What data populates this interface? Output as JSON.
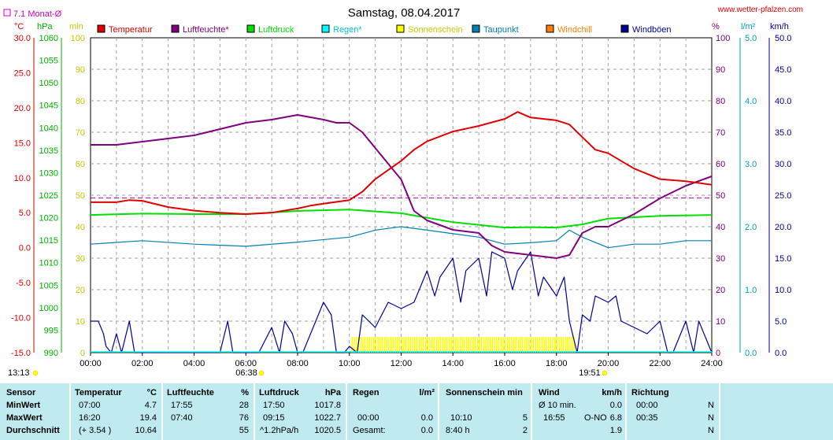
{
  "header": {
    "title": "Samstag, 08.04.2017",
    "site": "www.wetter-pfalzen.com",
    "monthly_avg_label": "7.1 Monat-Ø",
    "unit_temp": "°C",
    "unit_press": "hPa",
    "unit_min": "min",
    "unit_pct": "%",
    "unit_rain": "l/m²",
    "unit_wind": "km/h"
  },
  "legend": [
    {
      "label": "Temperatur",
      "color": "#e00000"
    },
    {
      "label": "Luftfeuchte*",
      "color": "#800080"
    },
    {
      "label": "Luftdruck",
      "color": "#00e000"
    },
    {
      "label": "Regen*",
      "color": "#00ffff"
    },
    {
      "label": "Sonnenschein",
      "color": "#ffff00"
    },
    {
      "label": "Taupunkt",
      "color": "#0080b0"
    },
    {
      "label": "Windchill",
      "color": "#ff8000"
    },
    {
      "label": "Windböen",
      "color": "#000090"
    }
  ],
  "sun": {
    "rise_label": "06:38",
    "set_label": "19:51",
    "day_label": "13:13"
  },
  "chart_data": {
    "type": "line",
    "title": "Samstag, 08.04.2017",
    "x_ticks": [
      "00:00",
      "02:00",
      "04:00",
      "06:00",
      "08:00",
      "10:00",
      "12:00",
      "14:00",
      "16:00",
      "18:00",
      "20:00",
      "22:00",
      "24:00"
    ],
    "axes": {
      "temp_c": {
        "min": -15,
        "max": 30,
        "ticks": [
          "30.0",
          "25.0",
          "20.0",
          "15.0",
          "10.0",
          "5.0",
          "0.0",
          "-5.0",
          "-10.0",
          "-15.0"
        ]
      },
      "pressure_hpa": {
        "min": 990,
        "max": 1060,
        "ticks": [
          "1060",
          "1055",
          "1050",
          "1045",
          "1040",
          "1035",
          "1030",
          "1025",
          "1020",
          "1015",
          "1010",
          "1005",
          "1000",
          "995",
          "990"
        ]
      },
      "sun_min": {
        "min": 0,
        "max": 100,
        "ticks": [
          "100",
          "90",
          "80",
          "70",
          "60",
          "50",
          "40",
          "30",
          "20",
          "10",
          "0"
        ]
      },
      "humidity_pct": {
        "min": 0,
        "max": 100,
        "ticks": [
          "100",
          "90",
          "80",
          "70",
          "60",
          "50",
          "40",
          "30",
          "20",
          "10",
          "0"
        ]
      },
      "rain_lm2": {
        "min": 0,
        "max": 5,
        "ticks": [
          "5.0",
          "4.0",
          "3.0",
          "2.0",
          "1.0",
          "0.0"
        ]
      },
      "wind_kmh": {
        "min": 0,
        "max": 50,
        "ticks": [
          "50.0",
          "45.0",
          "40.0",
          "35.0",
          "30.0",
          "25.0",
          "20.0",
          "15.0",
          "10.0",
          "5.0",
          "0.0"
        ]
      }
    },
    "monthly_avg_temp": 7.1,
    "series": [
      {
        "name": "Temperatur",
        "color": "#e00000",
        "axis": "temp_c",
        "x": [
          0,
          1,
          1.5,
          2,
          3,
          4,
          5,
          6,
          7,
          8,
          8.5,
          9,
          10,
          10.5,
          11,
          12,
          12.5,
          13,
          14,
          15,
          16,
          16.5,
          17,
          18,
          18.5,
          19,
          19.5,
          20,
          21,
          22,
          23,
          24
        ],
        "y": [
          6.5,
          6.5,
          6.8,
          6.7,
          5.8,
          5.3,
          5.0,
          4.8,
          5.0,
          5.6,
          6.0,
          6.3,
          6.8,
          8.0,
          9.8,
          12.4,
          14.0,
          15.2,
          16.6,
          17.4,
          18.4,
          19.4,
          18.6,
          18.2,
          17.6,
          15.8,
          14.0,
          13.5,
          11.3,
          9.8,
          9.5,
          9.0
        ]
      },
      {
        "name": "Luftfeuchte*",
        "color": "#800080",
        "axis": "humidity_pct",
        "x": [
          0,
          1,
          2,
          3,
          4,
          5,
          6,
          7,
          8,
          9,
          9.5,
          10,
          10.5,
          11,
          12,
          12.5,
          13,
          14,
          15,
          15.5,
          16,
          17,
          18,
          18.5,
          19,
          19.5,
          20,
          21,
          22,
          23,
          24
        ],
        "y": [
          66,
          66,
          67,
          68,
          69,
          71,
          73,
          74,
          75.5,
          74,
          73,
          73,
          70,
          65,
          55,
          45,
          42,
          39,
          38,
          34,
          32,
          31,
          30,
          31,
          38,
          40,
          40,
          44,
          49,
          53,
          56
        ]
      },
      {
        "name": "Luftdruck",
        "color": "#00e000",
        "axis": "pressure_hpa",
        "x": [
          0,
          2,
          4,
          6,
          8,
          10,
          12,
          13,
          14,
          16,
          17,
          18,
          19,
          20,
          22,
          24
        ],
        "y": [
          1020.6,
          1020.9,
          1020.8,
          1020.8,
          1021.5,
          1021.8,
          1021.0,
          1020.0,
          1019.0,
          1017.8,
          1017.9,
          1017.8,
          1018.5,
          1019.8,
          1020.4,
          1020.6
        ]
      },
      {
        "name": "Taupunkt",
        "color": "#0080b0",
        "axis": "temp_c",
        "x": [
          0,
          2,
          4,
          6,
          8,
          10,
          11,
          12,
          13,
          14,
          15,
          16,
          17,
          18,
          18.5,
          19,
          20,
          21,
          22,
          23,
          24
        ],
        "y": [
          0.5,
          1.0,
          0.5,
          0.2,
          0.8,
          1.5,
          2.5,
          3.0,
          2.5,
          2.0,
          1.5,
          0.5,
          0.7,
          1.0,
          2.5,
          1.5,
          0.0,
          0.5,
          0.5,
          1.0,
          1.0
        ]
      },
      {
        "name": "Windböen",
        "color": "#000090",
        "axis": "wind_kmh",
        "x": [
          0,
          0.3,
          0.5,
          0.6,
          0.8,
          1.0,
          1.2,
          1.5,
          1.7,
          5.0,
          5.3,
          5.5,
          5.8,
          6.5,
          7.0,
          7.3,
          7.5,
          7.8,
          8.0,
          8.2,
          9.0,
          9.3,
          9.5,
          9.8,
          10.0,
          10.3,
          10.5,
          11.0,
          11.5,
          12.0,
          12.5,
          13.0,
          13.3,
          13.5,
          14.0,
          14.3,
          14.5,
          15.0,
          15.3,
          15.5,
          16.0,
          16.3,
          16.5,
          17.0,
          17.3,
          17.5,
          18.0,
          18.3,
          18.5,
          18.8,
          19.0,
          19.3,
          19.5,
          20.0,
          20.3,
          20.5,
          21.0,
          21.5,
          22.0,
          22.3,
          22.5,
          23.0,
          23.3,
          23.5,
          24.0
        ],
        "y": [
          5,
          5,
          3,
          1,
          0,
          3,
          0,
          5,
          0,
          0,
          5,
          0,
          0,
          0,
          4,
          0,
          5,
          3,
          0,
          0,
          8,
          6,
          0,
          0,
          1,
          0,
          6,
          4,
          8,
          7,
          8,
          13,
          9,
          12,
          15,
          8,
          13,
          15,
          9,
          16,
          15,
          10,
          13,
          16,
          9,
          12,
          9,
          12,
          5,
          0,
          6,
          5,
          9,
          8,
          9,
          5,
          4,
          3,
          5,
          0,
          0,
          5,
          0,
          5,
          0
        ]
      }
    ],
    "sunshine": {
      "color": "#ffff00",
      "from": "10:05",
      "to": "18:45"
    }
  },
  "stats": {
    "headers": {
      "sensor": "Sensor",
      "temp": "Temperatur",
      "temp_unit": "°C",
      "hum": "Luftfeuchte",
      "hum_unit": "%",
      "press": "Luftdruck",
      "press_unit": "hPa",
      "rain": "Regen",
      "rain_unit": "l/m²",
      "sun": "Sonnenschein min",
      "wind": "Wind",
      "wind_unit": "km/h",
      "dir": "Richtung"
    },
    "rows": [
      {
        "label": "MinWert",
        "t_time": "07:00",
        "t_val": "4.7",
        "h_time": "17:55",
        "h_val": "28",
        "p_time": "17:50",
        "p_val": "1017.8",
        "r_time": "",
        "r_val": "",
        "s_time": "",
        "s_val": "",
        "w_time": "Ø 10 min.",
        "w_val": "0.0",
        "d_time": "00:00",
        "d_val": "N"
      },
      {
        "label": "MaxWert",
        "t_time": "16:20",
        "t_val": "19.4",
        "h_time": "07:40",
        "h_val": "76",
        "p_time": "09:15",
        "p_val": "1022.7",
        "r_time": "00:00",
        "r_val": "0.0",
        "s_time": "10:10",
        "s_val": "5",
        "w_time": "16:55",
        "w_dir": "O-NO",
        "w_val": "6.8",
        "d_time": "00:35",
        "d_val": "N"
      },
      {
        "label": "Durchschnitt",
        "t_time": "(+ 3.54 )",
        "t_val": "10.64",
        "h_time": "",
        "h_val": "55",
        "p_time": "^1.2hPa/h",
        "p_val": "1020.5",
        "r_time": "Gesamt:",
        "r_val": "0.0",
        "s_time": "8:40 h",
        "s_val": "2",
        "w_time": "",
        "w_val": "1.9",
        "d_time": "",
        "d_val": "N"
      }
    ]
  }
}
